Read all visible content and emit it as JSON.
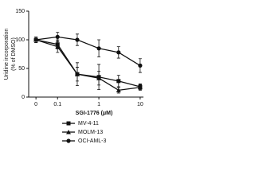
{
  "chart_data": {
    "type": "line",
    "x_label": "SGI-1776 (μM)",
    "y_label": [
      "Uridine incorporation",
      "(% of DMSO)"
    ],
    "x": [
      0.03,
      0.1,
      0.3,
      1,
      3,
      10
    ],
    "log_x": true,
    "xlim": [
      0.02,
      12
    ],
    "xticks": [
      {
        "value": 0.03,
        "label": "0"
      },
      0.1,
      1,
      10
    ],
    "ylim": [
      0,
      150
    ],
    "yticks": [
      0,
      50,
      100,
      150
    ],
    "series": [
      {
        "name": "MV-4-11",
        "color": "#111111",
        "marker": "square",
        "values": [
          100,
          92,
          40,
          35,
          28,
          18
        ],
        "errors": [
          5,
          8,
          20,
          22,
          10,
          5
        ]
      },
      {
        "name": "MOLM-13",
        "color": "#111111",
        "marker": "triangle",
        "values": [
          100,
          88,
          40,
          33,
          12,
          17
        ],
        "errors": [
          5,
          10,
          12,
          12,
          5,
          5
        ]
      },
      {
        "name": "OCI-AML-3",
        "color": "#111111",
        "marker": "circle",
        "values": [
          100,
          105,
          100,
          85,
          78,
          55
        ],
        "errors": [
          5,
          8,
          10,
          15,
          10,
          12
        ]
      }
    ],
    "legend": "bottom"
  }
}
